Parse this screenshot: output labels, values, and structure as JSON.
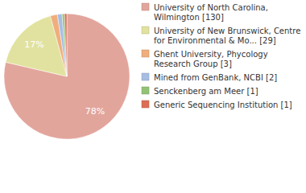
{
  "chart_data": {
    "type": "pie",
    "categories": [
      "University of North Carolina, Wilmington [130]",
      "University of New Brunswick, Centre for Environmental & Mo... [29]",
      "Ghent University, Phycology Research Group [3]",
      "Mined from GenBank, NCBI [2]",
      "Senckenberg am Meer [1]",
      "Generic Sequencing Institution [1]"
    ],
    "values": [
      78,
      17,
      1.8,
      1.2,
      0.6,
      0.6
    ],
    "value_labels": [
      "78%",
      "17%",
      null,
      null,
      null,
      null
    ],
    "colors": [
      "#e2a59c",
      "#e1e29f",
      "#efae7c",
      "#a7bde2",
      "#93c276",
      "#dc6e55"
    ],
    "data_labels": true,
    "legend": "top-right"
  }
}
